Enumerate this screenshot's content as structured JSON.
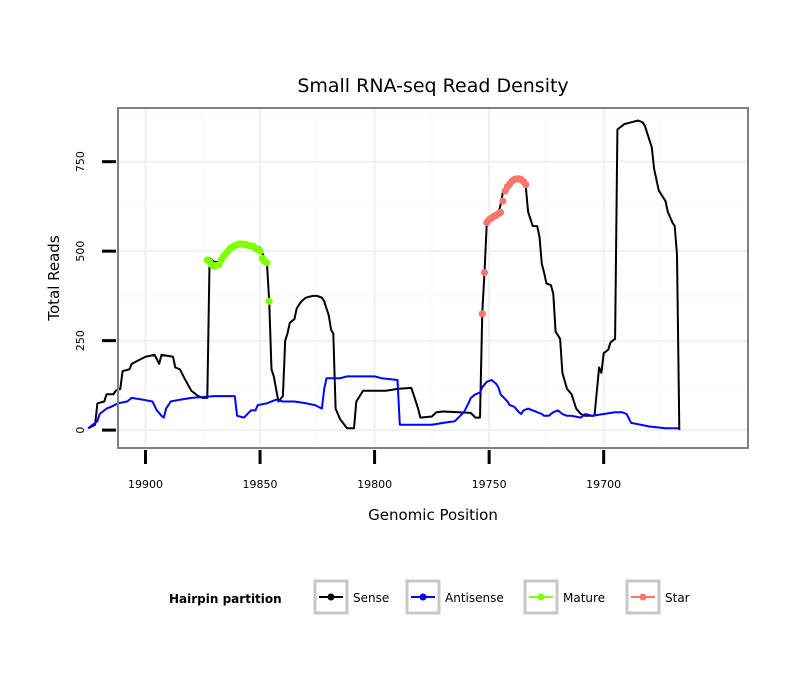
{
  "chart_data": {
    "type": "line",
    "title": "Small RNA-seq Read Density",
    "xlabel": "Genomic Position",
    "ylabel": "Total Reads",
    "x_reversed": true,
    "xlim": [
      19637,
      19912
    ],
    "ylim": [
      -50,
      900
    ],
    "x_ticks": [
      19900,
      19850,
      19800,
      19750,
      19700
    ],
    "x_tick_labels": [
      "19900",
      "19850",
      "19800",
      "19750",
      "19700"
    ],
    "y_ticks": [
      0,
      250,
      500,
      750
    ],
    "y_tick_labels": [
      "0",
      "250",
      "500",
      "750"
    ],
    "grid": true,
    "legend": {
      "title": "Hairpin partition",
      "position": "bottom",
      "entries": [
        {
          "label": "Sense",
          "color": "#000000"
        },
        {
          "label": "Antisense",
          "color": "#0000ff"
        },
        {
          "label": "Mature",
          "color": "#7fff00"
        },
        {
          "label": "Star",
          "color": "#f8766d"
        }
      ]
    },
    "series": [
      {
        "name": "Sense",
        "style": "line",
        "color": "#000000",
        "points": [
          [
            19925,
            5
          ],
          [
            19922,
            15
          ],
          [
            19921,
            75
          ],
          [
            19918,
            80
          ],
          [
            19917,
            100
          ],
          [
            19914,
            100
          ],
          [
            19913,
            110
          ],
          [
            19911,
            115
          ],
          [
            19910,
            165
          ],
          [
            19907,
            170
          ],
          [
            19906,
            185
          ],
          [
            19903,
            195
          ],
          [
            19900,
            205
          ],
          [
            19896,
            210
          ],
          [
            19894,
            185
          ],
          [
            19893,
            210
          ],
          [
            19888,
            205
          ],
          [
            19887,
            175
          ],
          [
            19885,
            170
          ],
          [
            19883,
            145
          ],
          [
            19880,
            110
          ],
          [
            19877,
            95
          ],
          [
            19875,
            90
          ],
          [
            19873,
            90
          ],
          [
            19872,
            480
          ],
          [
            19870,
            470
          ],
          [
            19868,
            470
          ],
          [
            19866,
            490
          ],
          [
            19864,
            500
          ],
          [
            19862,
            510
          ],
          [
            19860,
            520
          ],
          [
            19855,
            518
          ],
          [
            19852,
            515
          ],
          [
            19850,
            510
          ],
          [
            19848,
            480
          ],
          [
            19847,
            470
          ],
          [
            19846,
            360
          ],
          [
            19845,
            170
          ],
          [
            19844,
            150
          ],
          [
            19842,
            80
          ],
          [
            19840,
            95
          ],
          [
            19839,
            250
          ],
          [
            19838,
            270
          ],
          [
            19837,
            300
          ],
          [
            19835,
            310
          ],
          [
            19834,
            340
          ],
          [
            19832,
            360
          ],
          [
            19830,
            370
          ],
          [
            19827,
            375
          ],
          [
            19825,
            375
          ],
          [
            19823,
            370
          ],
          [
            19822,
            360
          ],
          [
            19820,
            320
          ],
          [
            19819,
            280
          ],
          [
            19818,
            270
          ],
          [
            19817,
            60
          ],
          [
            19815,
            30
          ],
          [
            19812,
            5
          ],
          [
            19809,
            5
          ],
          [
            19808,
            80
          ],
          [
            19806,
            100
          ],
          [
            19805,
            110
          ],
          [
            19803,
            110
          ],
          [
            19795,
            110
          ],
          [
            19790,
            115
          ],
          [
            19784,
            118
          ],
          [
            19783,
            100
          ],
          [
            19781,
            60
          ],
          [
            19780,
            35
          ],
          [
            19775,
            38
          ],
          [
            19773,
            50
          ],
          [
            19770,
            52
          ],
          [
            19758,
            48
          ],
          [
            19756,
            35
          ],
          [
            19754,
            35
          ],
          [
            19753,
            330
          ],
          [
            19752,
            440
          ],
          [
            19751,
            580
          ],
          [
            19749,
            595
          ],
          [
            19748,
            600
          ],
          [
            19746,
            605
          ],
          [
            19745,
            630
          ],
          [
            19744,
            665
          ],
          [
            19743,
            675
          ],
          [
            19741,
            685
          ],
          [
            19740,
            695
          ],
          [
            19737,
            700
          ],
          [
            19735,
            695
          ],
          [
            19734,
            680
          ],
          [
            19733,
            610
          ],
          [
            19731,
            570
          ],
          [
            19729,
            570
          ],
          [
            19728,
            540
          ],
          [
            19727,
            465
          ],
          [
            19726,
            440
          ],
          [
            19725,
            410
          ],
          [
            19723,
            405
          ],
          [
            19722,
            380
          ],
          [
            19721,
            275
          ],
          [
            19719,
            255
          ],
          [
            19718,
            160
          ],
          [
            19716,
            115
          ],
          [
            19714,
            100
          ],
          [
            19713,
            80
          ],
          [
            19712,
            60
          ],
          [
            19710,
            45
          ],
          [
            19708,
            40
          ],
          [
            19704,
            40
          ],
          [
            19702,
            175
          ],
          [
            19701,
            160
          ],
          [
            19700,
            215
          ],
          [
            19698,
            225
          ],
          [
            19697,
            245
          ],
          [
            19695,
            255
          ],
          [
            19694,
            840
          ],
          [
            19692,
            850
          ],
          [
            19691,
            855
          ],
          [
            19688,
            860
          ],
          [
            19685,
            865
          ],
          [
            19683,
            860
          ],
          [
            19682,
            850
          ],
          [
            19681,
            830
          ],
          [
            19679,
            790
          ],
          [
            19678,
            730
          ],
          [
            19676,
            670
          ],
          [
            19675,
            660
          ],
          [
            19673,
            640
          ],
          [
            19672,
            610
          ],
          [
            19670,
            580
          ],
          [
            19669,
            570
          ],
          [
            19668,
            490
          ],
          [
            19667,
            5
          ],
          [
            19667,
            0
          ]
        ]
      },
      {
        "name": "Antisense",
        "style": "line",
        "color": "#0000ff",
        "points": [
          [
            19925,
            5
          ],
          [
            19922,
            20
          ],
          [
            19921,
            25
          ],
          [
            19920,
            45
          ],
          [
            19917,
            60
          ],
          [
            19915,
            65
          ],
          [
            19912,
            75
          ],
          [
            19908,
            80
          ],
          [
            19906,
            90
          ],
          [
            19901,
            85
          ],
          [
            19897,
            80
          ],
          [
            19895,
            55
          ],
          [
            19893,
            40
          ],
          [
            19892,
            35
          ],
          [
            19891,
            60
          ],
          [
            19889,
            80
          ],
          [
            19885,
            85
          ],
          [
            19880,
            90
          ],
          [
            19870,
            95
          ],
          [
            19861,
            95
          ],
          [
            19860,
            40
          ],
          [
            19857,
            35
          ],
          [
            19854,
            55
          ],
          [
            19852,
            55
          ],
          [
            19851,
            70
          ],
          [
            19847,
            75
          ],
          [
            19843,
            85
          ],
          [
            19840,
            80
          ],
          [
            19835,
            80
          ],
          [
            19830,
            75
          ],
          [
            19826,
            70
          ],
          [
            19823,
            60
          ],
          [
            19822,
            115
          ],
          [
            19821,
            145
          ],
          [
            19815,
            145
          ],
          [
            19812,
            150
          ],
          [
            19800,
            150
          ],
          [
            19797,
            145
          ],
          [
            19790,
            140
          ],
          [
            19789,
            15
          ],
          [
            19785,
            15
          ],
          [
            19775,
            15
          ],
          [
            19770,
            20
          ],
          [
            19765,
            25
          ],
          [
            19761,
            50
          ],
          [
            19759,
            75
          ],
          [
            19758,
            90
          ],
          [
            19756,
            100
          ],
          [
            19754,
            105
          ],
          [
            19753,
            120
          ],
          [
            19751,
            135
          ],
          [
            19749,
            140
          ],
          [
            19747,
            130
          ],
          [
            19746,
            120
          ],
          [
            19745,
            100
          ],
          [
            19742,
            80
          ],
          [
            19741,
            70
          ],
          [
            19739,
            65
          ],
          [
            19737,
            50
          ],
          [
            19736,
            45
          ],
          [
            19735,
            55
          ],
          [
            19733,
            60
          ],
          [
            19731,
            55
          ],
          [
            19729,
            50
          ],
          [
            19727,
            45
          ],
          [
            19726,
            40
          ],
          [
            19724,
            40
          ],
          [
            19722,
            50
          ],
          [
            19720,
            55
          ],
          [
            19718,
            45
          ],
          [
            19716,
            40
          ],
          [
            19714,
            40
          ],
          [
            19710,
            35
          ],
          [
            19708,
            45
          ],
          [
            19705,
            40
          ],
          [
            19700,
            45
          ],
          [
            19695,
            50
          ],
          [
            19692,
            50
          ],
          [
            19690,
            45
          ],
          [
            19688,
            20
          ],
          [
            19680,
            10
          ],
          [
            19673,
            5
          ],
          [
            19667,
            5
          ]
        ]
      },
      {
        "name": "Mature",
        "style": "points",
        "color": "#7fff00",
        "points": [
          [
            19873,
            475
          ],
          [
            19872,
            470
          ],
          [
            19871,
            462
          ],
          [
            19870,
            458
          ],
          [
            19869,
            460
          ],
          [
            19868,
            462
          ],
          [
            19867,
            475
          ],
          [
            19866,
            485
          ],
          [
            19865,
            492
          ],
          [
            19864,
            500
          ],
          [
            19863,
            508
          ],
          [
            19862,
            512
          ],
          [
            19861,
            515
          ],
          [
            19860,
            518
          ],
          [
            19859,
            520
          ],
          [
            19858,
            520
          ],
          [
            19857,
            519
          ],
          [
            19856,
            518
          ],
          [
            19855,
            516
          ],
          [
            19854,
            514
          ],
          [
            19853,
            514
          ],
          [
            19852,
            508
          ],
          [
            19851,
            505
          ],
          [
            19850,
            500
          ],
          [
            19849,
            480
          ],
          [
            19848,
            472
          ],
          [
            19847,
            468
          ],
          [
            19846,
            360
          ]
        ]
      },
      {
        "name": "Star",
        "style": "points",
        "color": "#f8766d",
        "points": [
          [
            19753,
            325
          ],
          [
            19752,
            440
          ],
          [
            19751,
            580
          ],
          [
            19750,
            588
          ],
          [
            19749,
            592
          ],
          [
            19748,
            597
          ],
          [
            19747,
            600
          ],
          [
            19746,
            605
          ],
          [
            19745,
            608
          ],
          [
            19744,
            640
          ],
          [
            19743,
            668
          ],
          [
            19742,
            680
          ],
          [
            19741,
            688
          ],
          [
            19740,
            696
          ],
          [
            19739,
            700
          ],
          [
            19738,
            702
          ],
          [
            19737,
            702
          ],
          [
            19736,
            700
          ],
          [
            19735,
            694
          ],
          [
            19734,
            686
          ]
        ]
      }
    ]
  }
}
